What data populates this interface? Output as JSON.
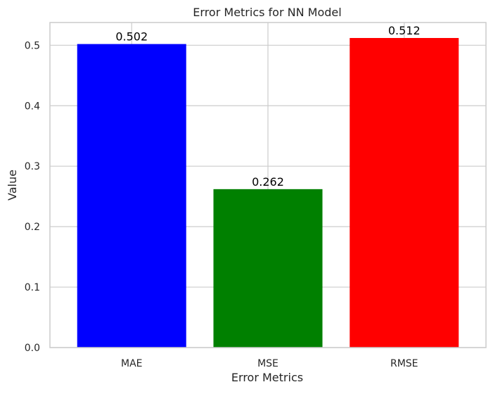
{
  "chart_data": {
    "type": "bar",
    "title": "Error Metrics for NN Model",
    "xlabel": "Error Metrics",
    "ylabel": "Value",
    "categories": [
      "MAE",
      "MSE",
      "RMSE"
    ],
    "values": [
      0.502,
      0.262,
      0.512
    ],
    "value_labels": [
      "0.502",
      "0.262",
      "0.512"
    ],
    "colors": [
      "#0000ff",
      "#008000",
      "#ff0000"
    ],
    "ylim": [
      0,
      0.5376
    ],
    "yticks": [
      0.0,
      0.1,
      0.2,
      0.3,
      0.4,
      0.5
    ],
    "ytick_labels": [
      "0.0",
      "0.1",
      "0.2",
      "0.3",
      "0.4",
      "0.5"
    ],
    "grid": true,
    "legend": "none"
  }
}
